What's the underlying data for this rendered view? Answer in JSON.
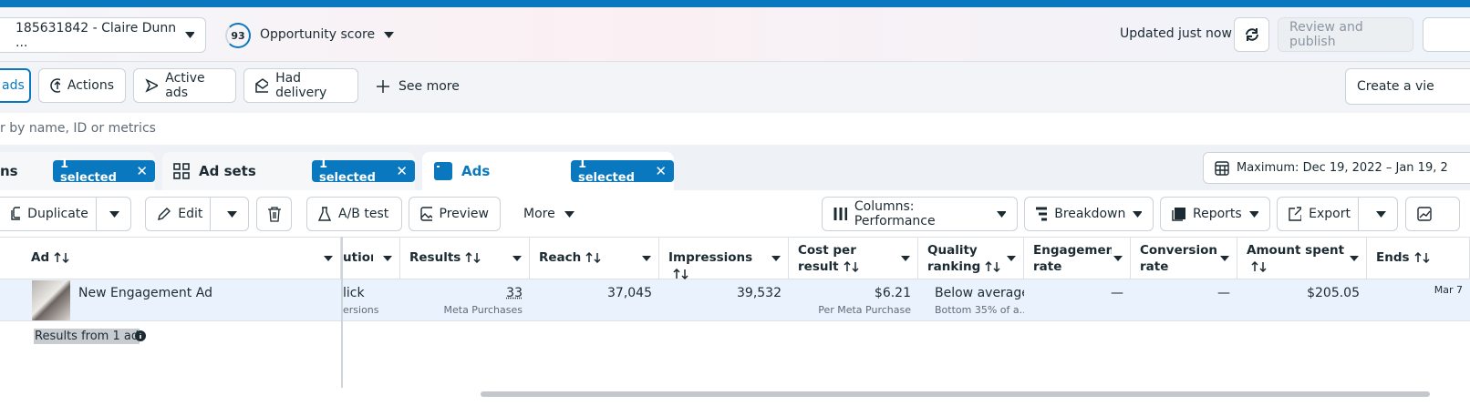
{
  "header": {
    "account": "185631842 - Claire Dunn ...",
    "score": "93",
    "score_label": "Opportunity score",
    "status": "Updated just now",
    "publish": "Review and publish"
  },
  "filters": {
    "items": [
      "ads",
      "Actions",
      "Active ads",
      "Had delivery"
    ],
    "see_more": "See more",
    "create_view": "Create a vie"
  },
  "search": {
    "placeholder": "r by name, ID or metrics"
  },
  "tabs": [
    {
      "label": "ns",
      "selected": "1 selected"
    },
    {
      "label": "Ad sets",
      "selected": "1 selected"
    },
    {
      "label": "Ads",
      "selected": "1 selected"
    }
  ],
  "date_range": "Maximum: Dec 19, 2022 – Jan 19, 2",
  "toolbar": {
    "duplicate": "Duplicate",
    "edit": "Edit",
    "ab_test": "A/B test",
    "preview": "Preview",
    "more": "More",
    "columns": "Columns: Performance",
    "breakdown": "Breakdown",
    "reports": "Reports",
    "export": "Export"
  },
  "table": {
    "columns": [
      "Ad",
      "ution",
      "Results",
      "Reach",
      "Impressions",
      "Cost per result",
      "Quality ranking",
      "Engagement rate rankin...",
      "Conversion rate rankin...",
      "Amount spent",
      "Ends"
    ],
    "rows": [
      {
        "name": "New Engagement Ad",
        "cells": [
          [
            "lick",
            "ersions"
          ],
          [
            "33",
            "Meta Purchases"
          ],
          [
            "37,045"
          ],
          [
            "39,532"
          ],
          [
            "$6.21",
            "Per Meta Purchase"
          ],
          [
            "Below average",
            "Bottom 35% of a..."
          ],
          [
            "—"
          ],
          [
            "—"
          ],
          [
            "$205.05"
          ],
          [
            "Mar 7"
          ]
        ]
      }
    ],
    "footer": "Results from 1 ad"
  }
}
